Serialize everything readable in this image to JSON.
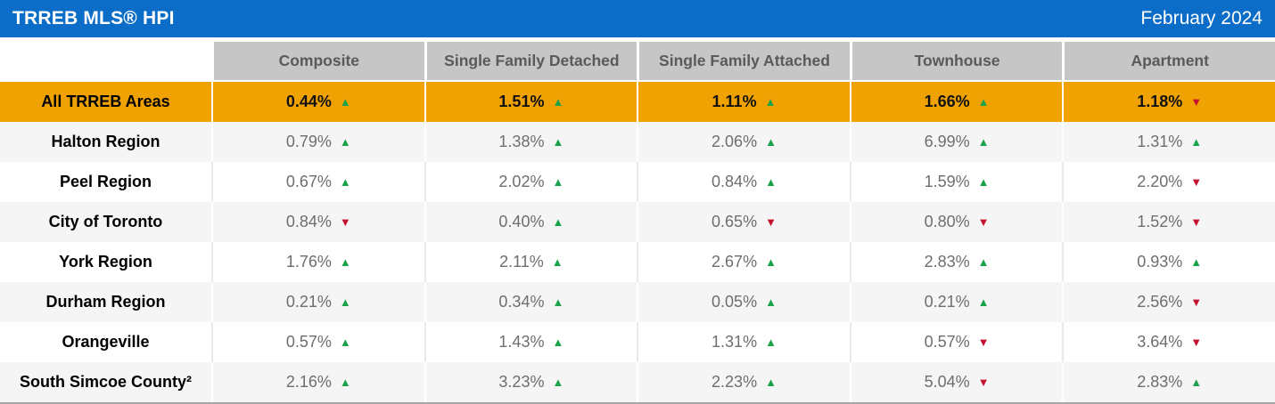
{
  "header": {
    "title": "TRREB MLS® HPI",
    "date": "February 2024"
  },
  "colors": {
    "topbar_blue": "#0b6dc7",
    "highlight_orange": "#f0a202",
    "column_header_gray": "#c6c6c6",
    "stripe_gray": "#f5f5f5",
    "value_text": "#6e6e6e",
    "up_green": "#1aa34a",
    "down_red": "#c51230"
  },
  "icons": {
    "up": "▲",
    "down": "▼"
  },
  "chart_data": {
    "type": "table",
    "title": "TRREB MLS® HPI",
    "subtitle": "February 2024",
    "unit": "percent change",
    "columns": [
      "Composite",
      "Single Family Detached",
      "Single Family Attached",
      "Townhouse",
      "Apartment"
    ],
    "rows": [
      {
        "label": "All TRREB Areas",
        "highlight": true,
        "values": [
          0.44,
          1.51,
          1.11,
          1.66,
          1.18
        ],
        "directions": [
          "up",
          "up",
          "up",
          "up",
          "down"
        ]
      },
      {
        "label": "Halton Region",
        "highlight": false,
        "values": [
          0.79,
          1.38,
          2.06,
          6.99,
          1.31
        ],
        "directions": [
          "up",
          "up",
          "up",
          "up",
          "up"
        ]
      },
      {
        "label": "Peel Region",
        "highlight": false,
        "values": [
          0.67,
          2.02,
          0.84,
          1.59,
          2.2
        ],
        "directions": [
          "up",
          "up",
          "up",
          "up",
          "down"
        ]
      },
      {
        "label": "City of Toronto",
        "highlight": false,
        "values": [
          0.84,
          0.4,
          0.65,
          0.8,
          1.52
        ],
        "directions": [
          "down",
          "up",
          "down",
          "down",
          "down"
        ]
      },
      {
        "label": "York Region",
        "highlight": false,
        "values": [
          1.76,
          2.11,
          2.67,
          2.83,
          0.93
        ],
        "directions": [
          "up",
          "up",
          "up",
          "up",
          "up"
        ]
      },
      {
        "label": "Durham Region",
        "highlight": false,
        "values": [
          0.21,
          0.34,
          0.05,
          0.21,
          2.56
        ],
        "directions": [
          "up",
          "up",
          "up",
          "up",
          "down"
        ]
      },
      {
        "label": "Orangeville",
        "highlight": false,
        "values": [
          0.57,
          1.43,
          1.31,
          0.57,
          3.64
        ],
        "directions": [
          "up",
          "up",
          "up",
          "down",
          "down"
        ]
      },
      {
        "label": "South Simcoe County²",
        "highlight": false,
        "values": [
          2.16,
          3.23,
          2.23,
          5.04,
          2.83
        ],
        "directions": [
          "up",
          "up",
          "up",
          "down",
          "up"
        ]
      }
    ]
  }
}
